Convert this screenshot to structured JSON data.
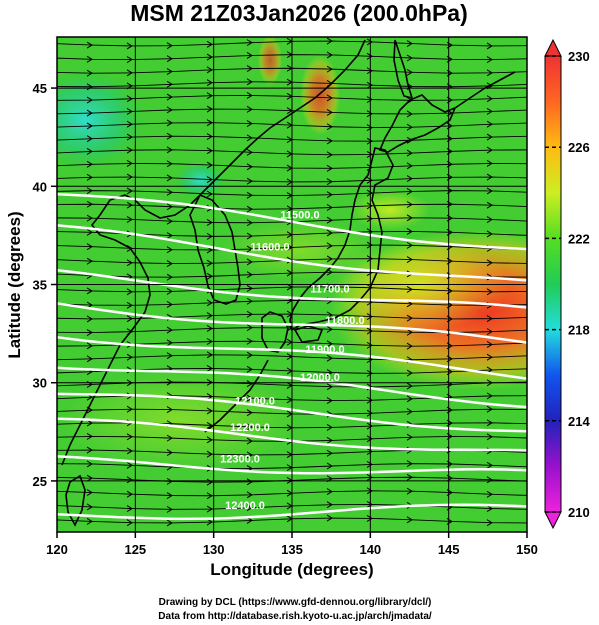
{
  "chart_data": {
    "type": "heatmap",
    "title": "MSM 21Z03Jan2026 (200.0hPa)",
    "xlabel": "Longitude (degrees)",
    "ylabel": "Latitude  (degrees)",
    "xlim": [
      120,
      150
    ],
    "ylim": [
      22.4,
      47.6
    ],
    "xticks": [
      120,
      125,
      130,
      135,
      140,
      145,
      150
    ],
    "yticks": [
      25,
      30,
      35,
      40,
      45
    ],
    "colorbar": {
      "range": [
        210,
        230
      ],
      "ticks": [
        210,
        214,
        218,
        222,
        226,
        230
      ],
      "stops": [
        {
          "v": 210,
          "c": "#ee22dd"
        },
        {
          "v": 212,
          "c": "#9911cc"
        },
        {
          "v": 214,
          "c": "#2222bb"
        },
        {
          "v": 216,
          "c": "#1155ee"
        },
        {
          "v": 218,
          "c": "#22dddd"
        },
        {
          "v": 220,
          "c": "#22cc55"
        },
        {
          "v": 222,
          "c": "#55dd22"
        },
        {
          "v": 224,
          "c": "#ccee22"
        },
        {
          "v": 226,
          "c": "#ffbb11"
        },
        {
          "v": 228,
          "c": "#ff6622"
        },
        {
          "v": 230,
          "c": "#ee3333"
        }
      ]
    },
    "contours": [
      {
        "label": "11500.0",
        "lat_at_120": 39.6,
        "lat_at_150": 36.8
      },
      {
        "label": "11600.0",
        "lat_at_120": 37.8,
        "lat_at_150": 35.0
      },
      {
        "label": "11700.0",
        "lat_at_120": 35.5,
        "lat_at_150": 33.6
      },
      {
        "label": "11800.0",
        "lat_at_120": 34.0,
        "lat_at_150": 32.0
      },
      {
        "label": "11900.0",
        "lat_at_120": 32.5,
        "lat_at_150": 30.4
      },
      {
        "label": "12000.0",
        "lat_at_120": 31.0,
        "lat_at_150": 29.0
      },
      {
        "label": "12100.0",
        "lat_at_120": 29.5,
        "lat_at_150": 27.6
      },
      {
        "label": "12200.0",
        "lat_at_120": 28.0,
        "lat_at_150": 26.4
      },
      {
        "label": "12300.0",
        "lat_at_120": 26.0,
        "lat_at_150": 25.3
      },
      {
        "label": "12400.0",
        "lat_at_120": 23.2,
        "lat_at_150": 23.6
      }
    ],
    "wind": "westerly vectors over entire domain"
  },
  "credits": {
    "line1": "Drawing by DCL (https://www.gfd-dennou.org/library/dcl/)",
    "line2": "Data from http://database.rish.kyoto-u.ac.jp/arch/jmadata/"
  }
}
